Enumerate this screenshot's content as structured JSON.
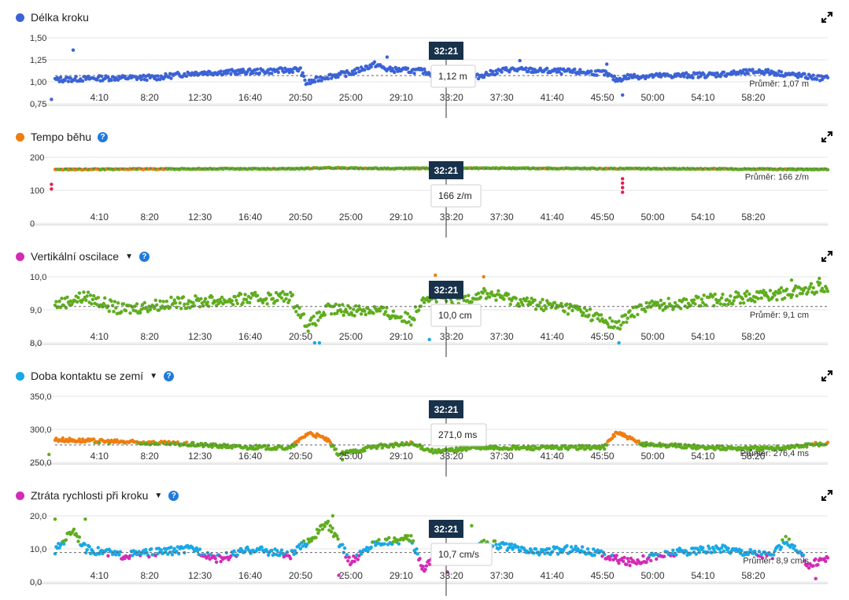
{
  "x_ticks": [
    "4:10",
    "8:20",
    "12:30",
    "16:40",
    "20:50",
    "25:00",
    "29:10",
    "33:20",
    "37:30",
    "41:40",
    "45:50",
    "50:00",
    "54:10",
    "58:20"
  ],
  "cursor_label": "32:21",
  "panels": [
    {
      "title": "Délka kroku",
      "has_dropdown": false,
      "has_help": false,
      "title_dot_color": "#3b63d8",
      "y_ticks": [
        "1,50",
        "1,25",
        "1,00",
        "0,75"
      ],
      "tooltip": "1,12 m",
      "average_label": "Průměr: 1,07 m",
      "expand_icon": "expand-icon"
    },
    {
      "title": "Tempo běhu",
      "has_dropdown": false,
      "has_help": true,
      "title_dot_color": "#f07d10",
      "y_ticks": [
        "200",
        "100",
        "0"
      ],
      "tooltip": "166 z/m",
      "average_label": "Průměr: 166 z/m",
      "expand_icon": "expand-icon"
    },
    {
      "title": "Vertikální oscilace",
      "has_dropdown": true,
      "has_help": true,
      "title_dot_color": "#d42bb5",
      "y_ticks": [
        "10,0",
        "9,0",
        "8,0"
      ],
      "tooltip": "10,0 cm",
      "average_label": "Průměr: 9,1 cm",
      "expand_icon": "expand-icon"
    },
    {
      "title": "Doba kontaktu se zemí",
      "has_dropdown": true,
      "has_help": true,
      "title_dot_color": "#18a9e6",
      "y_ticks": [
        "350,0",
        "300,0",
        "250,0"
      ],
      "tooltip": "271,0 ms",
      "average_label": "Průměr: 276,4 ms",
      "expand_icon": "expand-icon"
    },
    {
      "title": "Ztráta rychlosti při kroku",
      "has_dropdown": true,
      "has_help": true,
      "title_dot_color": "#d42bb5",
      "y_ticks": [
        "20,0",
        "10,0",
        "0,0"
      ],
      "tooltip": "10,7 cm/s",
      "average_label": "Průměr: 8,9 cm/s",
      "expand_icon": "expand-icon"
    }
  ],
  "chart_data": [
    {
      "type": "scatter",
      "title": "Délka kroku",
      "unit": "m",
      "ylim": [
        0.75,
        1.5
      ],
      "xlim_minutes": [
        0,
        64
      ],
      "average": 1.07,
      "cursor": {
        "x": "32:21",
        "y": 1.12
      },
      "series": [
        {
          "color": "#3b63d8",
          "baseline": 1.08,
          "noise": 0.03,
          "anchors": [
            [
              0,
              1.02
            ],
            [
              4,
              1.04
            ],
            [
              9,
              1.05
            ],
            [
              12,
              1.1
            ],
            [
              18,
              1.12
            ],
            [
              20.8,
              1.14
            ],
            [
              21.3,
              0.98
            ],
            [
              23,
              1.06
            ],
            [
              25,
              1.1
            ],
            [
              27,
              1.2
            ],
            [
              28,
              1.14
            ],
            [
              31,
              1.12
            ],
            [
              34,
              1.0
            ],
            [
              36,
              1.08
            ],
            [
              38,
              1.14
            ],
            [
              46,
              1.1
            ],
            [
              47,
              1.02
            ],
            [
              48,
              1.06
            ],
            [
              55,
              1.08
            ],
            [
              59,
              1.12
            ],
            [
              64,
              1.04
            ]
          ],
          "spikes": [
            [
              2,
              1.36
            ],
            [
              28,
              1.28
            ],
            [
              39,
              1.24
            ],
            [
              46.2,
              1.2
            ],
            [
              47.5,
              0.85
            ],
            [
              0.2,
              0.8
            ]
          ]
        }
      ]
    },
    {
      "type": "scatter",
      "title": "Tempo běhu",
      "unit": "z/m",
      "ylim": [
        0,
        200
      ],
      "xlim_minutes": [
        0,
        64
      ],
      "average": 166,
      "cursor": {
        "x": "32:21",
        "y": 166
      },
      "series": [
        {
          "color": "#5fad1e",
          "alt_color": "#f07d10",
          "baseline": 166,
          "noise": 1.5,
          "anchors": [
            [
              0,
              163
            ],
            [
              6,
              164
            ],
            [
              12,
              165
            ],
            [
              20,
              165
            ],
            [
              23,
              168
            ],
            [
              28,
              166
            ],
            [
              35,
              167
            ],
            [
              45,
              166
            ],
            [
              55,
              165
            ],
            [
              64,
              163
            ]
          ],
          "spikes": [
            [
              0.2,
              118
            ],
            [
              0.2,
              104
            ],
            [
              47.5,
              135
            ],
            [
              47.5,
              122
            ],
            [
              47.5,
              108
            ],
            [
              47.5,
              94
            ]
          ]
        }
      ]
    },
    {
      "type": "scatter",
      "title": "Vertikální oscilace",
      "unit": "cm",
      "ylim": [
        8.0,
        10.0
      ],
      "xlim_minutes": [
        0,
        64
      ],
      "average": 9.1,
      "cursor": {
        "x": "32:21",
        "y": 10.0
      },
      "series": [
        {
          "color": "#5fad1e",
          "alt_color": "#f07d10",
          "low_color": "#18a9e6",
          "baseline": 9.2,
          "noise": 0.18,
          "anchors": [
            [
              0,
              9.1
            ],
            [
              3,
              9.4
            ],
            [
              6,
              9.0
            ],
            [
              10,
              9.2
            ],
            [
              15,
              9.3
            ],
            [
              20,
              9.4
            ],
            [
              21.5,
              8.5
            ],
            [
              23,
              9.0
            ],
            [
              27,
              9.0
            ],
            [
              30,
              8.7
            ],
            [
              31,
              9.4
            ],
            [
              34,
              9.3
            ],
            [
              36,
              9.5
            ],
            [
              40,
              9.2
            ],
            [
              44,
              9.0
            ],
            [
              47,
              8.5
            ],
            [
              49,
              9.1
            ],
            [
              55,
              9.3
            ],
            [
              61,
              9.5
            ],
            [
              64,
              9.7
            ]
          ],
          "spikes": [
            [
              22,
              8.0
            ],
            [
              22.4,
              8.0
            ],
            [
              47.2,
              8.0
            ],
            [
              31.5,
              8.1
            ],
            [
              32,
              10.05
            ],
            [
              36,
              10.0
            ],
            [
              61.5,
              9.9
            ],
            [
              63.8,
              9.95
            ]
          ]
        }
      ]
    },
    {
      "type": "scatter",
      "title": "Doba kontaktu se zemí",
      "unit": "ms",
      "ylim": [
        250,
        350
      ],
      "xlim_minutes": [
        0,
        64
      ],
      "average": 276.4,
      "cursor": {
        "x": "32:21",
        "y": 271.0
      },
      "series": [
        {
          "color": "#5fad1e",
          "alt_color": "#f07d10",
          "baseline": 276,
          "noise": 3,
          "anchors": [
            [
              0,
              285
            ],
            [
              4,
              282
            ],
            [
              8,
              280
            ],
            [
              12,
              277
            ],
            [
              16,
              273
            ],
            [
              20,
              272
            ],
            [
              21.5,
              295
            ],
            [
              23,
              285
            ],
            [
              24,
              262
            ],
            [
              27,
              274
            ],
            [
              30,
              278
            ],
            [
              32,
              266
            ],
            [
              35,
              272
            ],
            [
              40,
              272
            ],
            [
              46,
              273
            ],
            [
              47,
              296
            ],
            [
              49,
              278
            ],
            [
              55,
              272
            ],
            [
              60,
              271
            ],
            [
              64,
              278
            ]
          ],
          "spikes": [
            [
              0,
              262
            ],
            [
              24.3,
              254
            ],
            [
              38,
              270
            ]
          ]
        }
      ]
    },
    {
      "type": "scatter",
      "title": "Ztráta rychlosti při kroku",
      "unit": "cm/s",
      "ylim": [
        0,
        20
      ],
      "xlim_minutes": [
        0,
        64
      ],
      "average": 8.9,
      "cursor": {
        "x": "32:21",
        "y": 10.7
      },
      "series": [
        {
          "color": "#18a9e6",
          "hi_color": "#5fad1e",
          "lo_color": "#d42bb5",
          "baseline": 9,
          "noise": 1.2,
          "anchors": [
            [
              0,
              7
            ],
            [
              2,
              16
            ],
            [
              3,
              10
            ],
            [
              6,
              8
            ],
            [
              9,
              9
            ],
            [
              12,
              10
            ],
            [
              14,
              7
            ],
            [
              17,
              10
            ],
            [
              20,
              8
            ],
            [
              22,
              14
            ],
            [
              23,
              18
            ],
            [
              25,
              6
            ],
            [
              27,
              12
            ],
            [
              30,
              13
            ],
            [
              31,
              4
            ],
            [
              32,
              8
            ],
            [
              34,
              6
            ],
            [
              36,
              12
            ],
            [
              40,
              9
            ],
            [
              44,
              10
            ],
            [
              48,
              6
            ],
            [
              52,
              9
            ],
            [
              56,
              10
            ],
            [
              60,
              8
            ],
            [
              61,
              13
            ],
            [
              63,
              5
            ],
            [
              64,
              7
            ]
          ],
          "spikes": [
            [
              0.5,
              19
            ],
            [
              3,
              19
            ],
            [
              23.5,
              20
            ],
            [
              35,
              17
            ],
            [
              24,
              2
            ],
            [
              33,
              3
            ],
            [
              63.5,
              1
            ]
          ]
        }
      ]
    }
  ]
}
